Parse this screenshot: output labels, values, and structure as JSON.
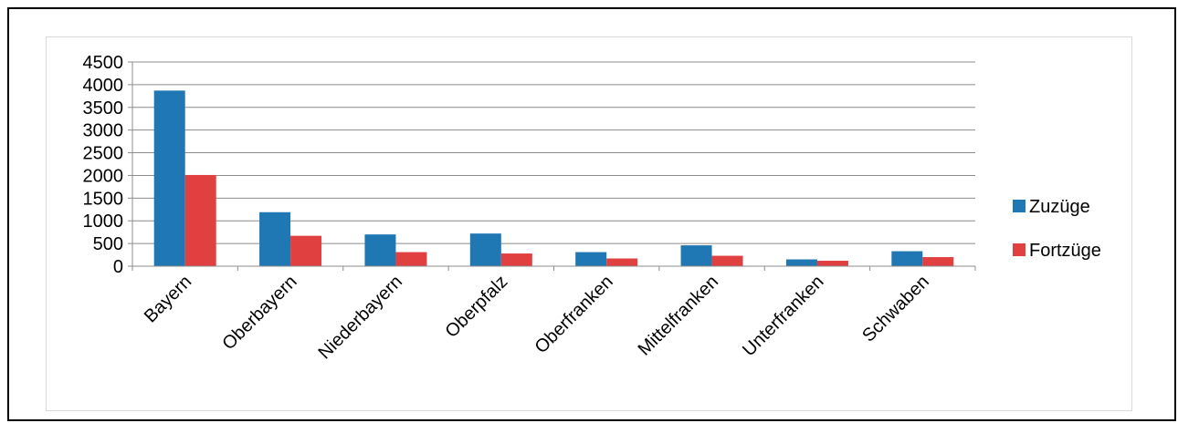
{
  "chart_data": {
    "type": "bar",
    "categories": [
      "Bayern",
      "Oberbayern",
      "Niederbayern",
      "Oberpfalz",
      "Oberfranken",
      "Mittelfranken",
      "Unterfranken",
      "Schwaben"
    ],
    "series": [
      {
        "name": "Zuzüge",
        "color": "#1f77b4",
        "values": [
          3870,
          1190,
          700,
          720,
          310,
          460,
          150,
          330
        ]
      },
      {
        "name": "Fortzüge",
        "color": "#e04040",
        "values": [
          2010,
          670,
          310,
          280,
          170,
          230,
          120,
          200
        ]
      }
    ],
    "yticks": [
      "0",
      "500",
      "1000",
      "1500",
      "2000",
      "2500",
      "3000",
      "3500",
      "4000",
      "4500"
    ],
    "ylim": [
      0,
      4500
    ],
    "grid": true,
    "legend": "right"
  }
}
